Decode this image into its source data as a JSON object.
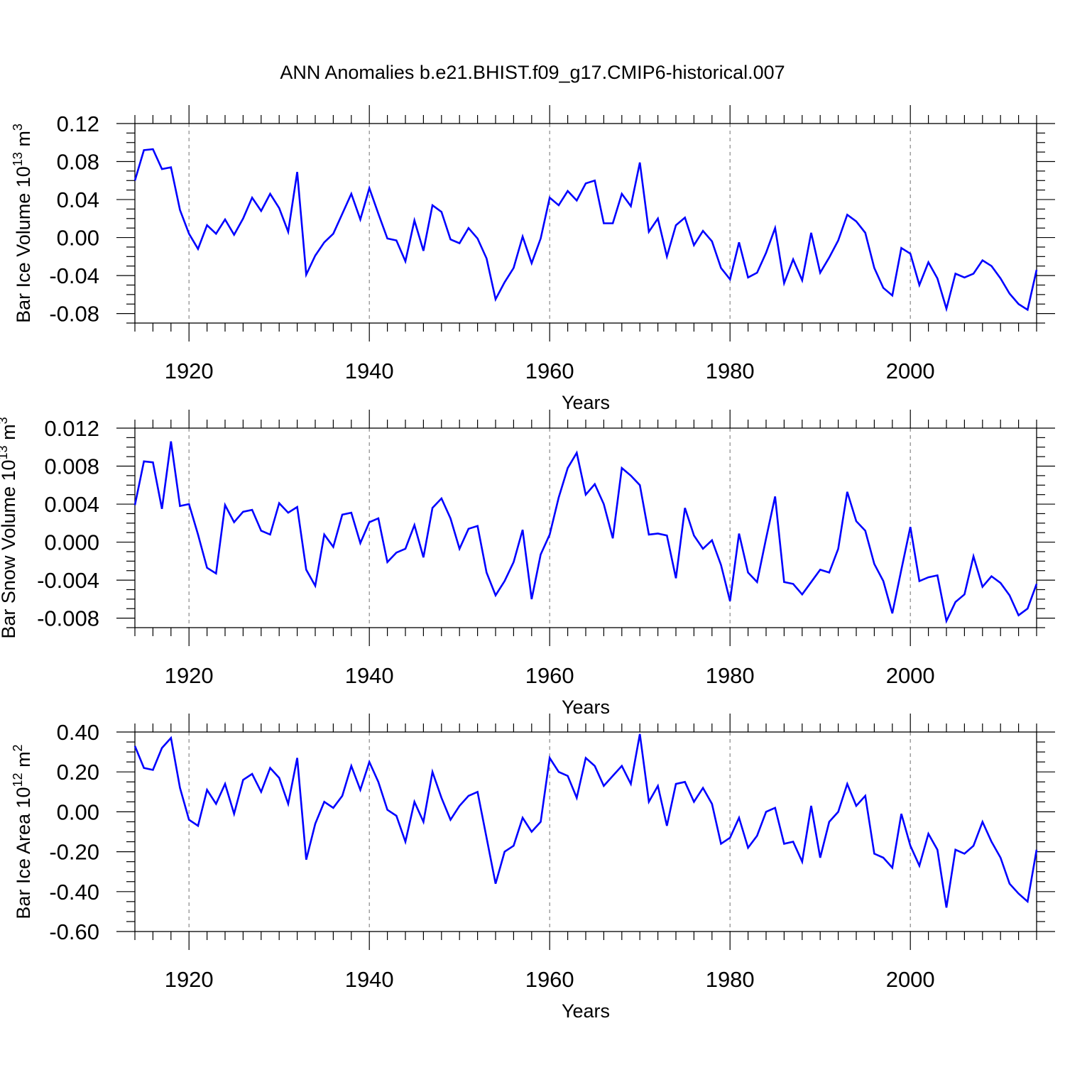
{
  "title": "ANN Anomalies b.e21.BHIST.f09_g17.CMIP6-historical.007",
  "chart_data": [
    {
      "type": "line",
      "ylabel": "Bar Ice Volume 10",
      "ylabel_exp": "13",
      "ylabel_unit": " m",
      "ylabel_unit_exp": "3",
      "xlabel": "Years",
      "xlim": [
        1914,
        2014
      ],
      "ylim": [
        -0.09,
        0.12
      ],
      "yticks": [
        -0.08,
        -0.04,
        0.0,
        0.04,
        0.08,
        0.12
      ],
      "ytick_labels": [
        "-0.08",
        "-0.04",
        "0.00",
        "0.04",
        "0.08",
        "0.12"
      ],
      "xticks": [
        1920,
        1940,
        1960,
        1980,
        2000
      ],
      "xtick_labels": [
        "1920",
        "1940",
        "1960",
        "1980",
        "2000"
      ],
      "color": "#0000ff",
      "x_start": 1914,
      "values": [
        0.06,
        0.092,
        0.093,
        0.072,
        0.074,
        0.029,
        0.004,
        -0.012,
        0.013,
        0.004,
        0.019,
        0.003,
        0.02,
        0.042,
        0.028,
        0.046,
        0.031,
        0.006,
        0.069,
        -0.039,
        -0.019,
        -0.005,
        0.004,
        0.025,
        0.046,
        0.019,
        0.052,
        0.025,
        -0.001,
        -0.003,
        -0.025,
        0.018,
        -0.014,
        0.034,
        0.027,
        -0.002,
        -0.006,
        0.01,
        -0.001,
        -0.022,
        -0.065,
        -0.047,
        -0.032,
        0.001,
        -0.027,
        -0.001,
        0.042,
        0.034,
        0.049,
        0.039,
        0.057,
        0.06,
        0.015,
        0.015,
        0.046,
        0.033,
        0.079,
        0.006,
        0.02,
        -0.02,
        0.013,
        0.021,
        -0.008,
        0.007,
        -0.004,
        -0.032,
        -0.044,
        -0.005,
        -0.042,
        -0.037,
        -0.016,
        0.01,
        -0.048,
        -0.023,
        -0.045,
        0.005,
        -0.037,
        -0.021,
        -0.003,
        0.024,
        0.017,
        0.005,
        -0.032,
        -0.053,
        -0.061,
        -0.011,
        -0.017,
        -0.05,
        -0.026,
        -0.043,
        -0.075,
        -0.038,
        -0.042,
        -0.038,
        -0.024,
        -0.03,
        -0.043,
        -0.059,
        -0.07,
        -0.076,
        -0.034
      ]
    },
    {
      "type": "line",
      "ylabel": "Bar Snow Volume 10",
      "ylabel_exp": "13",
      "ylabel_unit": " m",
      "ylabel_unit_exp": "3",
      "xlabel": "Years",
      "xlim": [
        1914,
        2014
      ],
      "ylim": [
        -0.009,
        0.012
      ],
      "yticks": [
        -0.008,
        -0.004,
        0.0,
        0.004,
        0.008,
        0.012
      ],
      "ytick_labels": [
        "-0.008",
        "-0.004",
        "0.000",
        "0.004",
        "0.008",
        "0.012"
      ],
      "xticks": [
        1920,
        1940,
        1960,
        1980,
        2000
      ],
      "xtick_labels": [
        "1920",
        "1940",
        "1960",
        "1980",
        "2000"
      ],
      "color": "#0000ff",
      "x_start": 1914,
      "values": [
        0.0039,
        0.0085,
        0.0084,
        0.0035,
        0.0106,
        0.0038,
        0.004,
        0.0008,
        -0.0027,
        -0.0033,
        0.0039,
        0.0021,
        0.0032,
        0.0034,
        0.0012,
        0.0008,
        0.0041,
        0.0031,
        0.0037,
        -0.0029,
        -0.0046,
        0.0008,
        -0.0005,
        0.0029,
        0.0031,
        -0.0001,
        0.0021,
        0.0025,
        -0.0021,
        -0.0011,
        -0.0007,
        0.0018,
        -0.0016,
        0.0036,
        0.0046,
        0.0025,
        -0.0007,
        0.0014,
        0.0017,
        -0.0032,
        -0.0056,
        -0.0041,
        -0.0021,
        0.0013,
        -0.006,
        -0.0013,
        0.0008,
        0.0047,
        0.0078,
        0.0094,
        0.005,
        0.0061,
        0.004,
        0.0004,
        0.0078,
        0.007,
        0.006,
        0.0008,
        0.0009,
        0.0007,
        -0.0038,
        0.0036,
        0.0007,
        -0.0007,
        0.0002,
        -0.0024,
        -0.0062,
        0.0009,
        -0.0032,
        -0.0042,
        0.0004,
        0.0048,
        -0.0042,
        -0.0044,
        -0.0055,
        -0.0042,
        -0.0029,
        -0.0032,
        -0.0007,
        0.0053,
        0.0022,
        0.0012,
        -0.0023,
        -0.0041,
        -0.0075,
        -0.0029,
        0.0016,
        -0.0041,
        -0.0037,
        -0.0035,
        -0.0083,
        -0.0063,
        -0.0055,
        -0.0015,
        -0.0047,
        -0.0036,
        -0.0043,
        -0.0056,
        -0.0077,
        -0.007,
        -0.0044
      ]
    },
    {
      "type": "line",
      "ylabel": "Bar Ice Area 10",
      "ylabel_exp": "12",
      "ylabel_unit": " m",
      "ylabel_unit_exp": "2",
      "xlabel": "Years",
      "xlim": [
        1914,
        2014
      ],
      "ylim": [
        -0.6,
        0.4
      ],
      "yticks": [
        -0.6,
        -0.4,
        -0.2,
        0.0,
        0.2,
        0.4
      ],
      "ytick_labels": [
        "-0.60",
        "-0.40",
        "-0.20",
        "0.00",
        "0.20",
        "0.40"
      ],
      "xticks": [
        1920,
        1940,
        1960,
        1980,
        2000
      ],
      "xtick_labels": [
        "1920",
        "1940",
        "1960",
        "1980",
        "2000"
      ],
      "color": "#0000ff",
      "x_start": 1914,
      "values": [
        0.33,
        0.22,
        0.21,
        0.32,
        0.37,
        0.12,
        -0.04,
        -0.07,
        0.11,
        0.04,
        0.14,
        -0.01,
        0.16,
        0.19,
        0.1,
        0.22,
        0.17,
        0.04,
        0.27,
        -0.24,
        -0.06,
        0.05,
        0.02,
        0.08,
        0.23,
        0.11,
        0.25,
        0.15,
        0.01,
        -0.02,
        -0.15,
        0.05,
        -0.05,
        0.2,
        0.07,
        -0.04,
        0.03,
        0.08,
        0.1,
        -0.13,
        -0.36,
        -0.2,
        -0.17,
        -0.03,
        -0.1,
        -0.05,
        0.27,
        0.2,
        0.18,
        0.07,
        0.27,
        0.23,
        0.13,
        0.18,
        0.23,
        0.14,
        0.39,
        0.05,
        0.13,
        -0.07,
        0.14,
        0.15,
        0.05,
        0.12,
        0.04,
        -0.16,
        -0.13,
        -0.03,
        -0.18,
        -0.12,
        0.0,
        0.02,
        -0.16,
        -0.15,
        -0.25,
        0.03,
        -0.23,
        -0.05,
        0.0,
        0.14,
        0.03,
        0.08,
        -0.21,
        -0.23,
        -0.28,
        -0.01,
        -0.17,
        -0.27,
        -0.11,
        -0.19,
        -0.48,
        -0.19,
        -0.21,
        -0.17,
        -0.05,
        -0.15,
        -0.23,
        -0.36,
        -0.41,
        -0.45,
        -0.19
      ]
    }
  ]
}
